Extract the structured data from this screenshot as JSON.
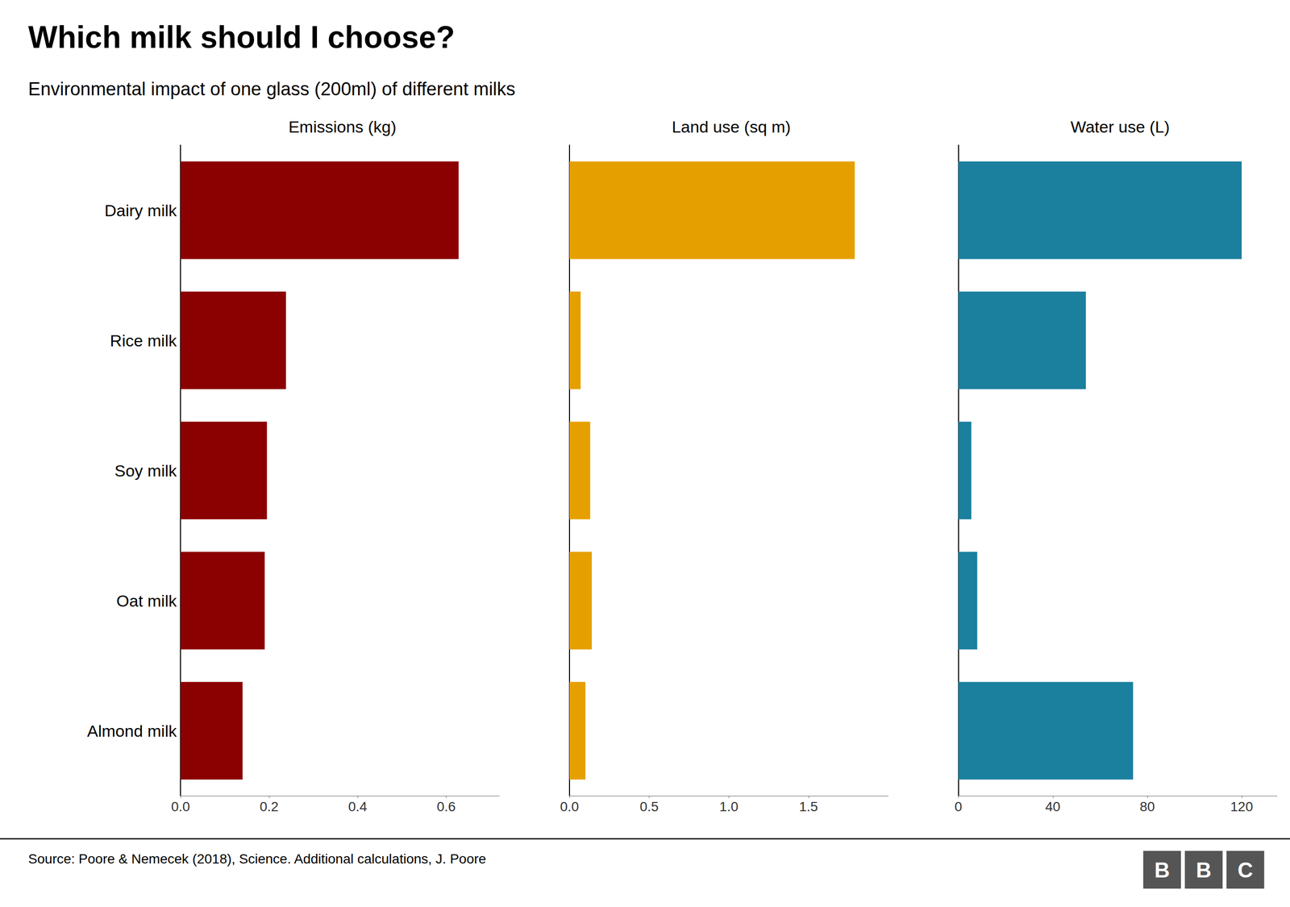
{
  "title": "Which milk should I choose?",
  "subtitle": "Environmental impact of one glass (200ml) of different milks",
  "source": "Source: Poore & Nemecek (2018), Science. Additional calculations, J. Poore",
  "logo": "BBC",
  "chart_data": [
    {
      "type": "bar",
      "orientation": "horizontal",
      "title": "Emissions (kg)",
      "categories": [
        "Dairy milk",
        "Rice milk",
        "Soy milk",
        "Oat milk",
        "Almond milk"
      ],
      "values": [
        0.628,
        0.238,
        0.195,
        0.19,
        0.14
      ],
      "color": "#8B0000",
      "xlim": [
        0,
        0.72
      ],
      "xticks": [
        {
          "value": 0.0,
          "label": "0.0"
        },
        0.2,
        0.4,
        0.6
      ],
      "grid": false
    },
    {
      "type": "bar",
      "orientation": "horizontal",
      "title": "Land use (sq m)",
      "categories": [
        "Dairy milk",
        "Rice milk",
        "Soy milk",
        "Oat milk",
        "Almond milk"
      ],
      "values": [
        1.79,
        0.07,
        0.13,
        0.14,
        0.1
      ],
      "color": "#E5A000",
      "xlim": [
        0,
        2.0
      ],
      "xticks": [
        {
          "value": 0.0,
          "label": "0.0"
        },
        0.5,
        {
          "value": 1.0,
          "label": "1.0"
        },
        1.5
      ],
      "grid": false,
      "tick_labels": "x"
    },
    {
      "type": "bar",
      "orientation": "horizontal",
      "title": "Water use (L)",
      "categories": [
        "Dairy milk",
        "Rice milk",
        "Soy milk",
        "Oat milk",
        "Almond milk"
      ],
      "values": [
        120.0,
        54.0,
        5.5,
        8.0,
        74.0
      ],
      "color": "#1B7F9E",
      "xlim": [
        0,
        135
      ],
      "xticks": [
        0,
        40,
        80,
        120
      ],
      "grid": false,
      "tick_labels": "x"
    }
  ]
}
